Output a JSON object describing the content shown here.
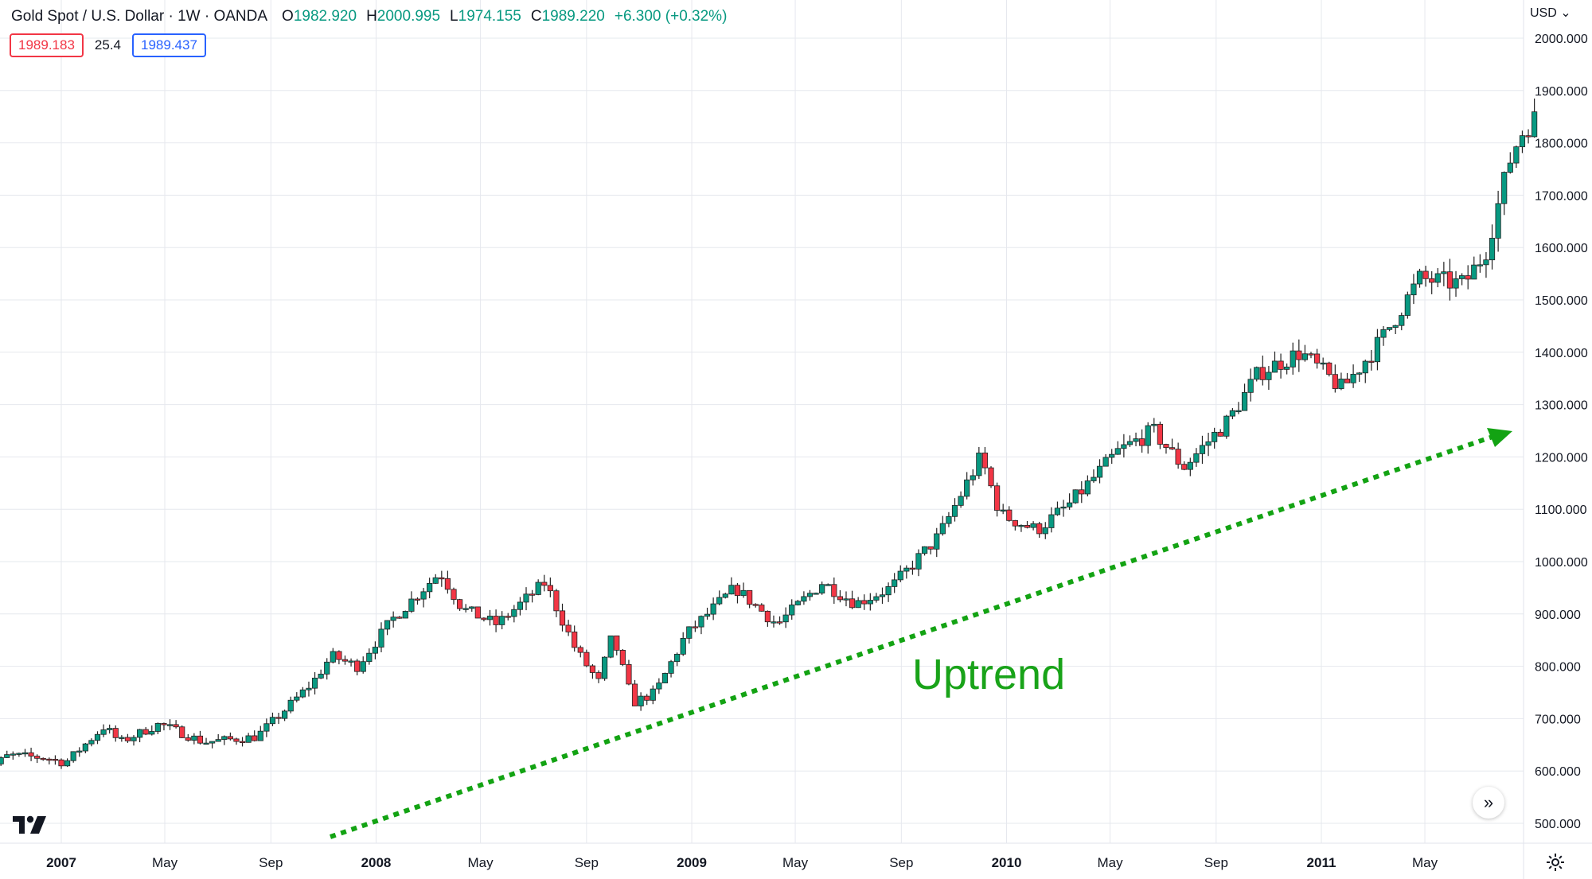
{
  "header": {
    "title": "Gold Spot / U.S. Dollar · 1W · OANDA",
    "open_label": "O",
    "open": "1982.920",
    "high_label": "H",
    "high": "2000.995",
    "low_label": "L",
    "low": "1974.155",
    "close_label": "C",
    "close": "1989.220",
    "change": "+6.300 (+0.32%)"
  },
  "quote": {
    "bid": "1989.183",
    "spread": "25.4",
    "ask": "1989.437"
  },
  "currency_label": "USD ⌄",
  "scroll_button": "»",
  "annotation": {
    "text": "Uptrend"
  },
  "colors": {
    "up": "#089981",
    "down": "#f23645",
    "trend": "#13a313",
    "annotation": "#19a319",
    "grid": "#e6e8ee"
  },
  "icons": {
    "logo": "tradingview-logo-icon",
    "settings": "gear-icon",
    "scroll": "double-chevron-right-icon"
  },
  "chart_data": {
    "type": "candlestick",
    "interval": "1W",
    "yaxis": {
      "ticks": [
        500,
        600,
        700,
        800,
        900,
        1000,
        1100,
        1200,
        1300,
        1400,
        1500,
        1600,
        1700,
        1800,
        1900,
        2000
      ],
      "tick_labels": [
        "500.000",
        "600.000",
        "700.000",
        "800.000",
        "900.000",
        "1000.000",
        "1100.000",
        "1200.000",
        "1300.000",
        "1400.000",
        "1500.000",
        "1600.000",
        "1700.000",
        "1800.000",
        "1900.000",
        "2000.000"
      ],
      "range": [
        480,
        2030
      ]
    },
    "xaxis": {
      "tick_labels": [
        {
          "label": "2007",
          "date": "2007-01-01",
          "bold": true
        },
        {
          "label": "May",
          "date": "2007-05-01",
          "bold": false
        },
        {
          "label": "Sep",
          "date": "2007-09-01",
          "bold": false
        },
        {
          "label": "2008",
          "date": "2008-01-01",
          "bold": true
        },
        {
          "label": "May",
          "date": "2008-05-01",
          "bold": false
        },
        {
          "label": "Sep",
          "date": "2008-09-01",
          "bold": false
        },
        {
          "label": "2009",
          "date": "2009-01-01",
          "bold": true
        },
        {
          "label": "May",
          "date": "2009-05-01",
          "bold": false
        },
        {
          "label": "Sep",
          "date": "2009-09-01",
          "bold": false
        },
        {
          "label": "2010",
          "date": "2010-01-01",
          "bold": true
        },
        {
          "label": "May",
          "date": "2010-05-01",
          "bold": false
        },
        {
          "label": "Sep",
          "date": "2010-09-01",
          "bold": false
        },
        {
          "label": "2011",
          "date": "2011-01-01",
          "bold": true
        },
        {
          "label": "May",
          "date": "2011-05-01",
          "bold": false
        }
      ],
      "range": [
        "2006-09-25",
        "2011-09-20"
      ]
    },
    "price_path": [
      [
        "2006-09-25",
        590
      ],
      [
        "2006-11-01",
        630
      ],
      [
        "2006-12-15",
        625
      ],
      [
        "2007-01-05",
        615
      ],
      [
        "2007-02-20",
        685
      ],
      [
        "2007-03-10",
        655
      ],
      [
        "2007-04-25",
        690
      ],
      [
        "2007-06-15",
        655
      ],
      [
        "2007-08-15",
        665
      ],
      [
        "2007-09-10",
        705
      ],
      [
        "2007-10-20",
        770
      ],
      [
        "2007-11-10",
        820
      ],
      [
        "2007-12-10",
        800
      ],
      [
        "2008-01-20",
        890
      ],
      [
        "2008-03-15",
        980
      ],
      [
        "2008-04-10",
        910
      ],
      [
        "2008-05-20",
        880
      ],
      [
        "2008-07-15",
        960
      ],
      [
        "2008-08-20",
        830
      ],
      [
        "2008-09-15",
        770
      ],
      [
        "2008-10-01",
        860
      ],
      [
        "2008-10-25",
        730
      ],
      [
        "2008-11-20",
        750
      ],
      [
        "2008-12-25",
        860
      ],
      [
        "2009-02-20",
        950
      ],
      [
        "2009-04-10",
        880
      ],
      [
        "2009-06-01",
        960
      ],
      [
        "2009-07-10",
        920
      ],
      [
        "2009-08-20",
        950
      ],
      [
        "2009-10-15",
        1050
      ],
      [
        "2009-12-02",
        1200
      ],
      [
        "2009-12-25",
        1090
      ],
      [
        "2010-02-05",
        1060
      ],
      [
        "2010-03-15",
        1110
      ],
      [
        "2010-05-10",
        1210
      ],
      [
        "2010-06-20",
        1250
      ],
      [
        "2010-07-25",
        1180
      ],
      [
        "2010-09-15",
        1270
      ],
      [
        "2010-10-20",
        1360
      ],
      [
        "2010-12-08",
        1400
      ],
      [
        "2011-01-25",
        1330
      ],
      [
        "2011-03-10",
        1420
      ],
      [
        "2011-04-25",
        1540
      ],
      [
        "2011-06-15",
        1530
      ],
      [
        "2011-07-10",
        1590
      ],
      [
        "2011-08-10",
        1780
      ],
      [
        "2011-08-25",
        1830
      ],
      [
        "2011-09-09",
        1850
      ]
    ]
  }
}
